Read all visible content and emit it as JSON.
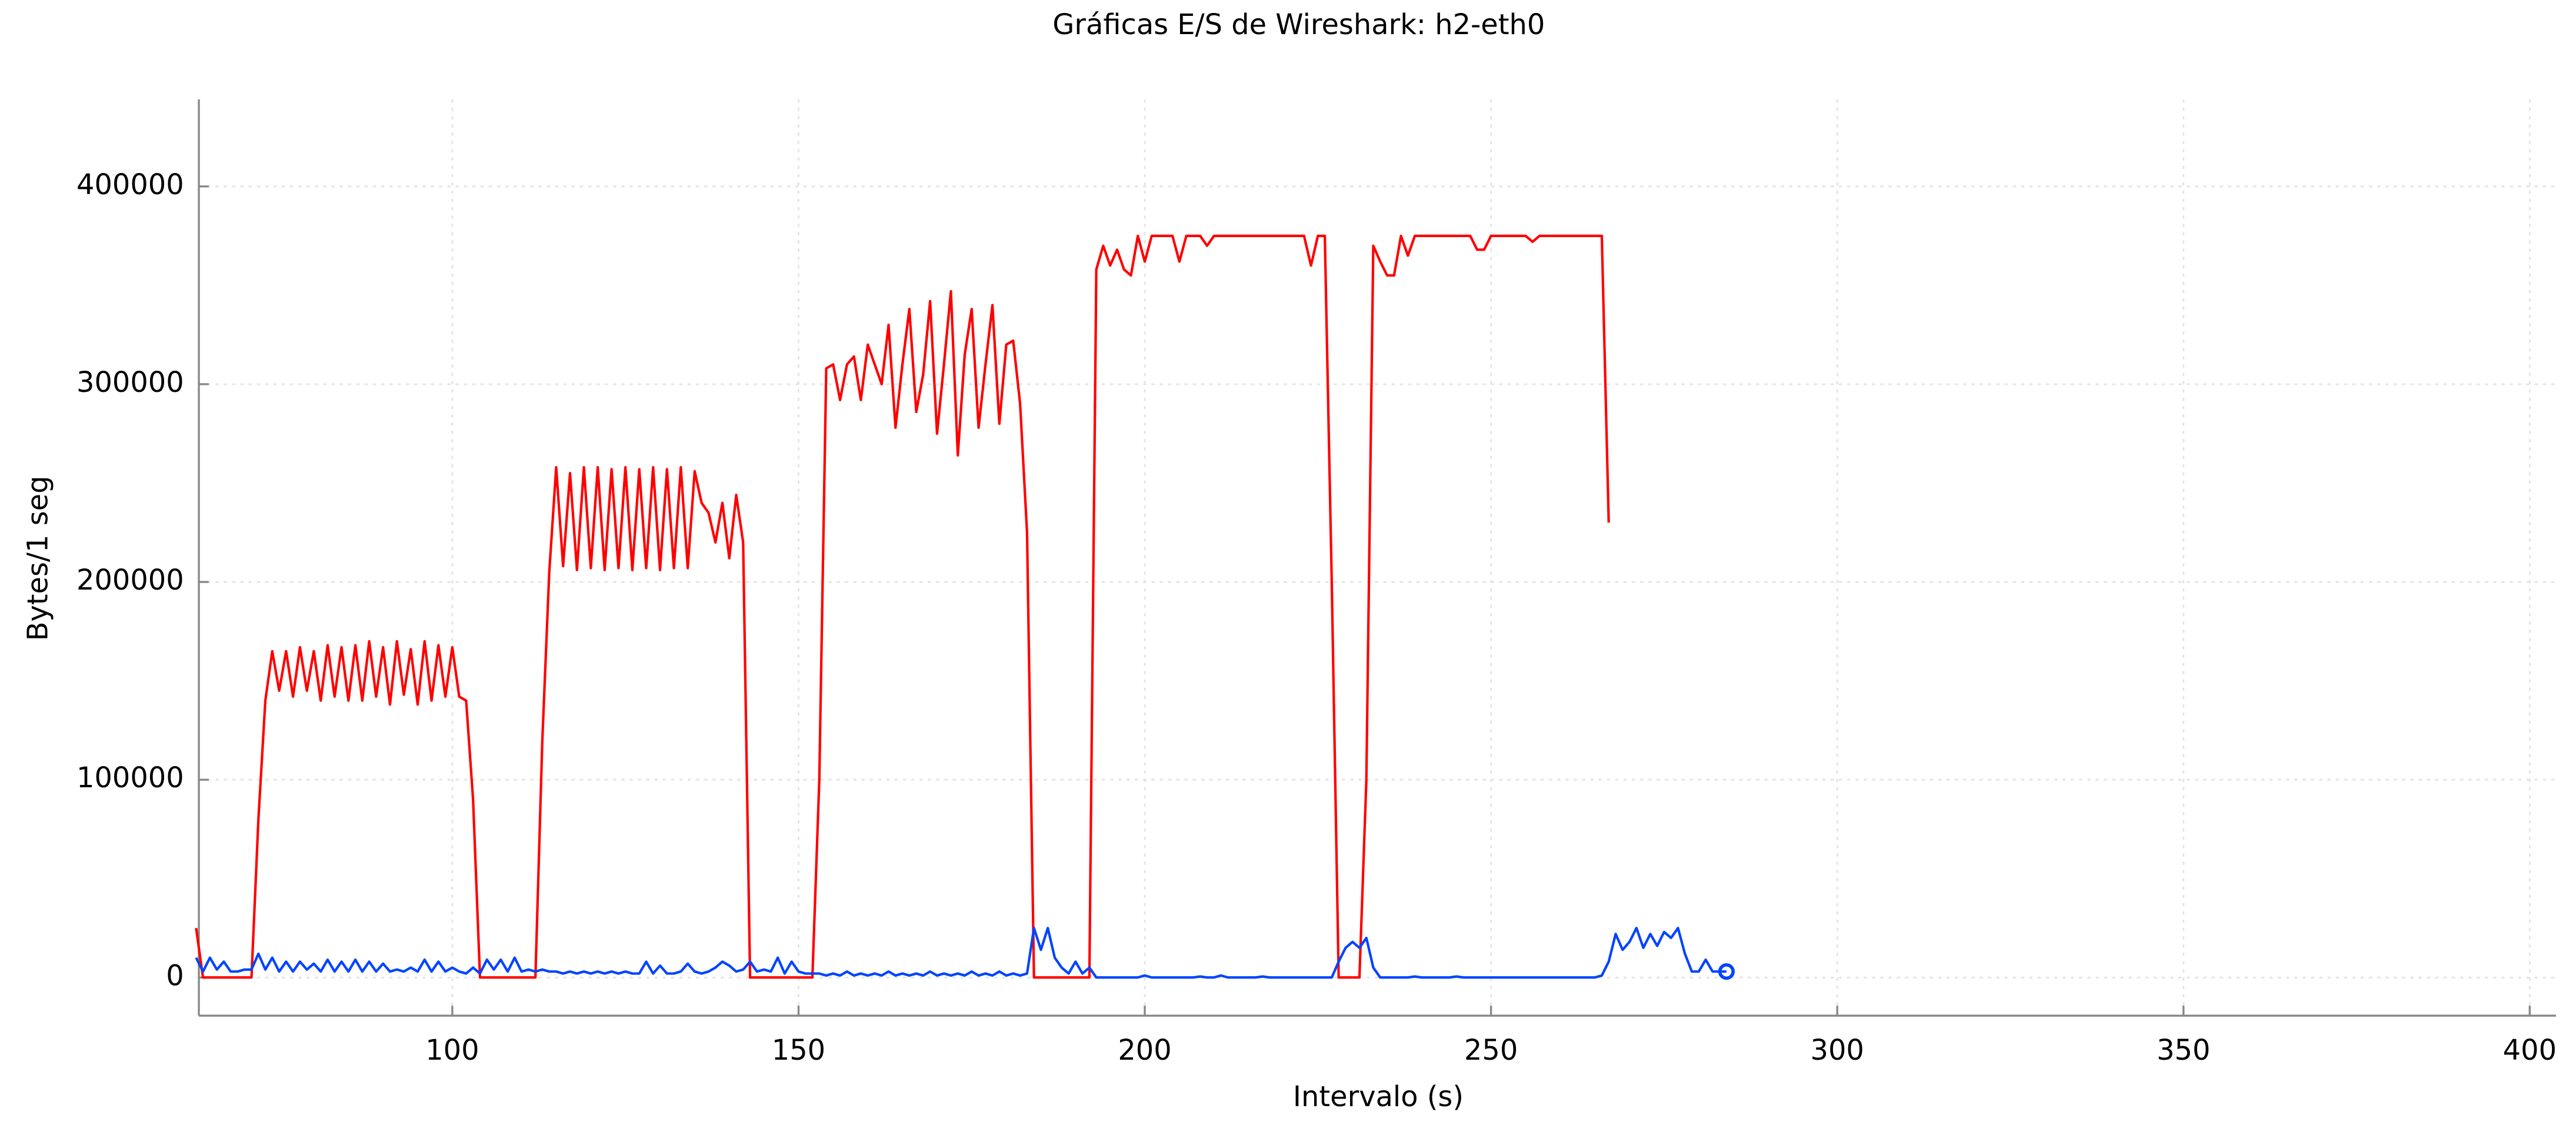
{
  "chart_data": {
    "type": "line",
    "title": "Gráficas E/S de Wireshark: h2-eth0",
    "xlabel": "Intervalo (s)",
    "ylabel": "Bytes/1 seg",
    "xlim": [
      63.4,
      403.8
    ],
    "ylim": [
      -19300,
      444000
    ],
    "xticks": [
      100,
      150,
      200,
      250,
      300,
      350,
      400
    ],
    "yticks": [
      0,
      100000,
      200000,
      300000,
      400000
    ],
    "grid": true,
    "x": [
      63,
      64,
      65,
      66,
      67,
      68,
      69,
      70,
      71,
      72,
      73,
      74,
      75,
      76,
      77,
      78,
      79,
      80,
      81,
      82,
      83,
      84,
      85,
      86,
      87,
      88,
      89,
      90,
      91,
      92,
      93,
      94,
      95,
      96,
      97,
      98,
      99,
      100,
      101,
      102,
      103,
      104,
      105,
      106,
      107,
      108,
      109,
      110,
      111,
      112,
      113,
      114,
      115,
      116,
      117,
      118,
      119,
      120,
      121,
      122,
      123,
      124,
      125,
      126,
      127,
      128,
      129,
      130,
      131,
      132,
      133,
      134,
      135,
      136,
      137,
      138,
      139,
      140,
      141,
      142,
      143,
      144,
      145,
      146,
      147,
      148,
      149,
      150,
      151,
      152,
      153,
      154,
      155,
      156,
      157,
      158,
      159,
      160,
      161,
      162,
      163,
      164,
      165,
      166,
      167,
      168,
      169,
      170,
      171,
      172,
      173,
      174,
      175,
      176,
      177,
      178,
      179,
      180,
      181,
      182,
      183,
      184,
      185,
      186,
      187,
      188,
      189,
      190,
      191,
      192,
      193,
      194,
      195,
      196,
      197,
      198,
      199,
      200,
      201,
      202,
      203,
      204,
      205,
      206,
      207,
      208,
      209,
      210,
      211,
      212,
      213,
      214,
      215,
      216,
      217,
      218,
      219,
      220,
      221,
      222,
      223,
      224,
      225,
      226,
      227,
      228,
      229,
      230,
      231,
      232,
      233,
      234,
      235,
      236,
      237,
      238,
      239,
      240,
      241,
      242,
      243,
      244,
      245,
      246,
      247,
      248,
      249,
      250,
      251,
      252,
      253,
      254,
      255,
      256,
      257,
      258,
      259,
      260,
      261,
      262,
      263,
      264,
      265,
      266,
      267,
      268,
      269,
      270,
      271,
      272,
      273,
      274,
      275,
      276,
      277,
      278,
      279,
      280,
      281,
      282,
      283,
      284
    ],
    "series": [
      {
        "color": "#ff0000",
        "values": [
          25000,
          0,
          0,
          0,
          0,
          0,
          0,
          0,
          0,
          80000,
          140000,
          165000,
          145000,
          165000,
          142000,
          167000,
          145000,
          165000,
          140000,
          168000,
          142000,
          167000,
          140000,
          168000,
          140000,
          170000,
          142000,
          167000,
          138000,
          170000,
          143000,
          166000,
          138000,
          170000,
          140000,
          168000,
          142000,
          167000,
          142000,
          140000,
          90000,
          0,
          0,
          0,
          0,
          0,
          0,
          0,
          0,
          0,
          120000,
          205000,
          258000,
          208000,
          255000,
          206000,
          258000,
          207000,
          258000,
          206000,
          257000,
          207000,
          258000,
          206000,
          257000,
          207000,
          258000,
          206000,
          257000,
          207000,
          258000,
          207000,
          256000,
          240000,
          235000,
          220000,
          240000,
          212000,
          244000,
          220000,
          0,
          0,
          0,
          0,
          0,
          0,
          0,
          0,
          0,
          0,
          100000,
          308000,
          310000,
          292000,
          310000,
          314000,
          292000,
          320000,
          310000,
          300000,
          330000,
          278000,
          310000,
          338000,
          286000,
          305000,
          342000,
          275000,
          310000,
          347000,
          264000,
          315000,
          338000,
          278000,
          310000,
          340000,
          280000,
          320000,
          322000,
          290000,
          225000,
          0,
          0,
          0,
          0,
          0,
          0,
          0,
          0,
          0,
          358000,
          370000,
          360000,
          368000,
          358000,
          355000,
          375000,
          362000,
          375000,
          375000,
          375000,
          375000,
          362000,
          375000,
          375000,
          375000,
          370000,
          375000,
          375000,
          375000,
          375000,
          375000,
          375000,
          375000,
          375000,
          375000,
          375000,
          375000,
          375000,
          375000,
          375000,
          360000,
          375000,
          375000,
          200000,
          0,
          0,
          0,
          0,
          100000,
          370000,
          362000,
          355000,
          355000,
          375000,
          365000,
          375000,
          375000,
          375000,
          375000,
          375000,
          375000,
          375000,
          375000,
          375000,
          368000,
          368000,
          375000,
          375000,
          375000,
          375000,
          375000,
          375000,
          372000,
          375000,
          375000,
          375000,
          375000,
          375000,
          375000,
          375000,
          375000,
          375000,
          375000,
          230000,
          null,
          null,
          null,
          null,
          null,
          null,
          null,
          null,
          null,
          null,
          null,
          null,
          null,
          null,
          null,
          null,
          null
        ]
      },
      {
        "color": "#0044ff",
        "values": [
          10000,
          3000,
          10000,
          4000,
          8000,
          3000,
          3000,
          4000,
          4000,
          12000,
          4000,
          10000,
          3000,
          8000,
          3000,
          8000,
          4000,
          7000,
          3000,
          9000,
          3000,
          8000,
          3000,
          9000,
          3000,
          8000,
          3000,
          7000,
          3000,
          4000,
          3000,
          5000,
          3000,
          9000,
          3000,
          8000,
          3000,
          5000,
          3000,
          2000,
          5000,
          2000,
          9000,
          4000,
          9000,
          3000,
          10000,
          3000,
          4000,
          3000,
          4000,
          3000,
          3000,
          2000,
          3000,
          2000,
          3000,
          2000,
          3000,
          2000,
          3000,
          2000,
          3000,
          2000,
          2000,
          8000,
          2000,
          6000,
          2000,
          2000,
          3000,
          7000,
          3000,
          2000,
          3000,
          5000,
          8000,
          6000,
          3000,
          4000,
          8000,
          3000,
          4000,
          3000,
          10000,
          2000,
          8000,
          3000,
          2000,
          2000,
          2000,
          1000,
          2000,
          1000,
          3000,
          1000,
          2000,
          1000,
          2000,
          1000,
          3000,
          1000,
          2000,
          1000,
          2000,
          1000,
          3000,
          1000,
          2000,
          1000,
          2000,
          1000,
          3000,
          1000,
          2000,
          1000,
          3000,
          1000,
          2000,
          1000,
          2000,
          25000,
          14000,
          25000,
          10000,
          5000,
          2000,
          8000,
          2000,
          5000,
          0,
          0,
          0,
          0,
          0,
          0,
          0,
          1000,
          0,
          0,
          0,
          0,
          0,
          0,
          0,
          500,
          0,
          0,
          1000,
          0,
          0,
          0,
          0,
          0,
          500,
          0,
          0,
          0,
          0,
          0,
          0,
          0,
          0,
          0,
          0,
          8000,
          15000,
          18000,
          15000,
          20000,
          5000,
          0,
          0,
          0,
          0,
          0,
          500,
          0,
          0,
          0,
          0,
          0,
          500,
          0,
          0,
          0,
          0,
          0,
          0,
          0,
          0,
          0,
          0,
          0,
          0,
          0,
          0,
          0,
          0,
          0,
          0,
          0,
          0,
          1000,
          8000,
          22000,
          14000,
          18000,
          25000,
          15000,
          22000,
          16000,
          23000,
          20000,
          25000,
          12000,
          3000,
          3000,
          9000,
          3000,
          3000,
          3000
        ]
      }
    ]
  }
}
